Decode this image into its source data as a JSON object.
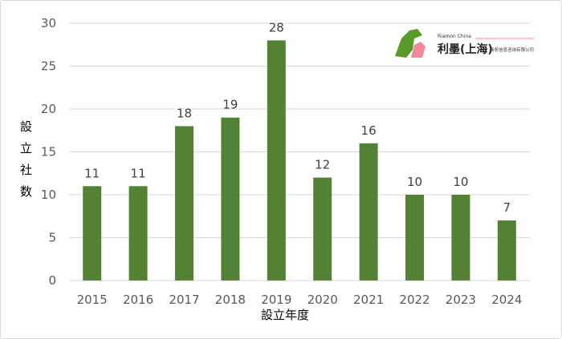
{
  "chart_data": {
    "type": "bar",
    "categories": [
      "2015",
      "2016",
      "2017",
      "2018",
      "2019",
      "2020",
      "2021",
      "2022",
      "2023",
      "2024"
    ],
    "values": [
      11,
      11,
      18,
      19,
      28,
      12,
      16,
      10,
      10,
      7
    ],
    "title": "",
    "xlabel": "設立年度",
    "ylabel": "設立社数",
    "ylim": [
      0,
      30
    ],
    "yticks": [
      0,
      5,
      10,
      15,
      20,
      25,
      30
    ],
    "grid": true,
    "data_labels": true,
    "bar_color": "#548235",
    "grid_color": "#d9d9d9"
  },
  "logo": {
    "brand_en": "Riamon China",
    "brand_cn": "利墨(上海)",
    "company": "商务信息咨询有限公司"
  }
}
